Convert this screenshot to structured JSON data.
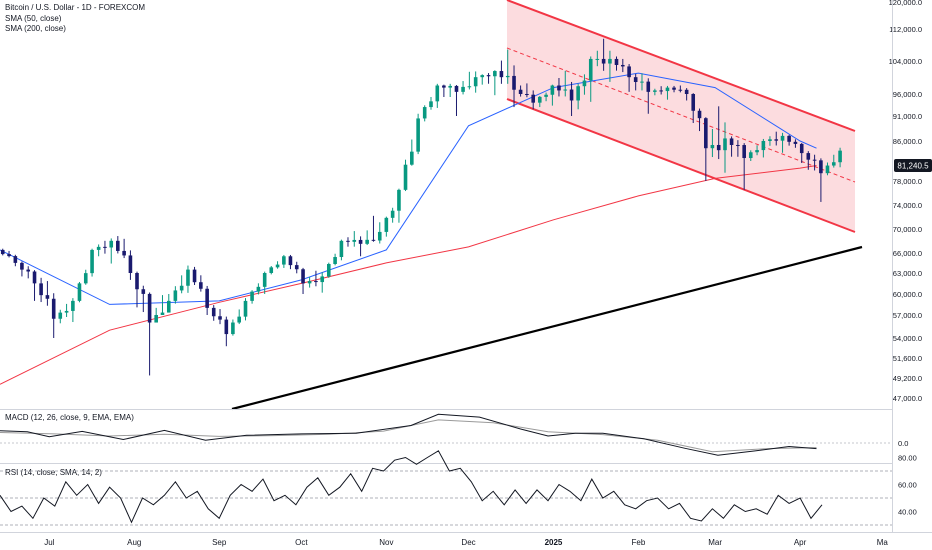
{
  "chart_data": {
    "type": "candlestick",
    "title": "Bitcoin / U.S. Dollar - 1D - FOREXCOM",
    "colors": {
      "up": "#089981",
      "down": "#1a1a6e",
      "sma50": "#2962ff",
      "sma200": "#f23645",
      "channel": "#f23645",
      "channel_fill": "#fbd0d4",
      "trendline": "#000000",
      "price_label_bg": "#131722"
    },
    "panels": [
      {
        "name": "price",
        "legend": [
          "SMA (50, close)",
          "SMA (200, close)"
        ],
        "y_scale": "log",
        "y_ticks": [
          [
            "120,000.0",
            120000
          ],
          [
            "112,000.0",
            112000
          ],
          [
            "104,000.0",
            104000
          ],
          [
            "96,000.0",
            96000
          ],
          [
            "91,000.0",
            91000
          ],
          [
            "86,000.0",
            86000
          ],
          [
            "78,000.0",
            78000
          ],
          [
            "74,000.0",
            74000
          ],
          [
            "70,000.0",
            70000
          ],
          [
            "66,000.0",
            66000
          ],
          [
            "63,000.0",
            63000
          ],
          [
            "60,000.0",
            60000
          ],
          [
            "57,000.0",
            57000
          ],
          [
            "54,000.0",
            54000
          ],
          [
            "51,600.0",
            51600
          ],
          [
            "49,200.0",
            49200
          ],
          [
            "47,000.0",
            47000
          ]
        ],
        "last_price_label": "81,240.5",
        "last_price": 81240.5
      },
      {
        "name": "macd",
        "label": "MACD (12, 26, close, 9, EMA, EMA)",
        "y_ticks": [
          [
            "0.0",
            0
          ]
        ]
      },
      {
        "name": "rsi",
        "label": "RSI (14, close, SMA, 14, 2)",
        "y_ticks": [
          [
            "80.00",
            80
          ],
          [
            "60.00",
            60
          ],
          [
            "40.00",
            40
          ]
        ],
        "bands": [
          70,
          50,
          30
        ]
      }
    ],
    "x_ticks": [
      {
        "label": "Jul",
        "day": 18
      },
      {
        "label": "Aug",
        "day": 49
      },
      {
        "label": "Sep",
        "day": 80
      },
      {
        "label": "Oct",
        "day": 110
      },
      {
        "label": "Nov",
        "day": 141
      },
      {
        "label": "Dec",
        "day": 171
      },
      {
        "label": "2025",
        "day": 202,
        "bold": true
      },
      {
        "label": "Feb",
        "day": 233
      },
      {
        "label": "Mar",
        "day": 261
      },
      {
        "label": "Apr",
        "day": 292
      },
      {
        "label": "Ma",
        "day": 322
      }
    ],
    "ohlc_weekly_approx": [
      {
        "week": "Jun 16",
        "o": 66500,
        "h": 67000,
        "l": 64000,
        "c": 64500
      },
      {
        "week": "Jun 23",
        "o": 64500,
        "h": 65000,
        "l": 59000,
        "c": 61500
      },
      {
        "week": "Jun 30",
        "o": 61500,
        "h": 63500,
        "l": 54000,
        "c": 56500
      },
      {
        "week": "Jul 7",
        "o": 56500,
        "h": 60000,
        "l": 55000,
        "c": 59000
      },
      {
        "week": "Jul 14",
        "o": 59000,
        "h": 67000,
        "l": 58500,
        "c": 66500
      },
      {
        "week": "Jul 21",
        "o": 66500,
        "h": 69000,
        "l": 64000,
        "c": 68000
      },
      {
        "week": "Jul 28",
        "o": 68000,
        "h": 70000,
        "l": 62000,
        "c": 63000
      },
      {
        "week": "Aug 4",
        "o": 63000,
        "h": 63500,
        "l": 49500,
        "c": 56000
      },
      {
        "week": "Aug 11",
        "o": 56000,
        "h": 61500,
        "l": 56000,
        "c": 59000
      },
      {
        "week": "Aug 18",
        "o": 59000,
        "h": 65000,
        "l": 58000,
        "c": 63500
      },
      {
        "week": "Aug 25",
        "o": 63500,
        "h": 64500,
        "l": 57000,
        "c": 58000
      },
      {
        "week": "Sep 1",
        "o": 58000,
        "h": 59000,
        "l": 53000,
        "c": 54500
      },
      {
        "week": "Sep 8",
        "o": 54500,
        "h": 60000,
        "l": 54000,
        "c": 59000
      },
      {
        "week": "Sep 15",
        "o": 59000,
        "h": 63500,
        "l": 58000,
        "c": 63000
      },
      {
        "week": "Sep 22",
        "o": 63000,
        "h": 66000,
        "l": 62500,
        "c": 65500
      },
      {
        "week": "Sep 29",
        "o": 65500,
        "h": 66000,
        "l": 60000,
        "c": 61500
      },
      {
        "week": "Oct 6",
        "o": 61500,
        "h": 64000,
        "l": 60000,
        "c": 62500
      },
      {
        "week": "Oct 13",
        "o": 62500,
        "h": 68500,
        "l": 62000,
        "c": 68000
      },
      {
        "week": "Oct 20",
        "o": 68000,
        "h": 69500,
        "l": 65500,
        "c": 67500
      },
      {
        "week": "Oct 27",
        "o": 67500,
        "h": 73500,
        "l": 67000,
        "c": 69500
      },
      {
        "week": "Nov 3",
        "o": 69500,
        "h": 77000,
        "l": 67500,
        "c": 76500
      },
      {
        "week": "Nov 10",
        "o": 76500,
        "h": 93000,
        "l": 76000,
        "c": 90500
      },
      {
        "week": "Nov 17",
        "o": 90500,
        "h": 99000,
        "l": 89000,
        "c": 98000
      },
      {
        "week": "Nov 24",
        "o": 98000,
        "h": 98500,
        "l": 91000,
        "c": 96500
      },
      {
        "week": "Dec 1",
        "o": 96500,
        "h": 103500,
        "l": 95000,
        "c": 100000
      },
      {
        "week": "Dec 8",
        "o": 100000,
        "h": 102000,
        "l": 95500,
        "c": 101500
      },
      {
        "week": "Dec 15",
        "o": 101500,
        "h": 108000,
        "l": 93000,
        "c": 97000
      },
      {
        "week": "Dec 22",
        "o": 97000,
        "h": 99500,
        "l": 92500,
        "c": 94000
      },
      {
        "week": "Dec 29",
        "o": 94000,
        "h": 98500,
        "l": 91500,
        "c": 98000
      },
      {
        "week": "Jan 5",
        "o": 98000,
        "h": 102500,
        "l": 91000,
        "c": 94500
      },
      {
        "week": "Jan 12",
        "o": 94500,
        "h": 106000,
        "l": 89500,
        "c": 104500
      },
      {
        "week": "Jan 19",
        "o": 104500,
        "h": 109500,
        "l": 100000,
        "c": 104500
      },
      {
        "week": "Jan 26",
        "o": 104500,
        "h": 106000,
        "l": 96500,
        "c": 100000
      },
      {
        "week": "Feb 2",
        "o": 100000,
        "h": 102000,
        "l": 91500,
        "c": 96500
      },
      {
        "week": "Feb 9",
        "o": 96500,
        "h": 98500,
        "l": 94500,
        "c": 97500
      },
      {
        "week": "Feb 16",
        "o": 97500,
        "h": 98500,
        "l": 94500,
        "c": 96000
      },
      {
        "week": "Feb 23",
        "o": 96000,
        "h": 96500,
        "l": 78000,
        "c": 84500
      },
      {
        "week": "Mar 2",
        "o": 84500,
        "h": 94500,
        "l": 80000,
        "c": 86500
      },
      {
        "week": "Mar 9",
        "o": 86500,
        "h": 87500,
        "l": 76500,
        "c": 82500
      },
      {
        "week": "Mar 16",
        "o": 82500,
        "h": 87000,
        "l": 81000,
        "c": 86000
      },
      {
        "week": "Mar 23",
        "o": 86000,
        "h": 88500,
        "l": 83500,
        "c": 87000
      },
      {
        "week": "Mar 30",
        "o": 87000,
        "h": 87500,
        "l": 81500,
        "c": 83500
      },
      {
        "week": "Apr 6",
        "o": 83500,
        "h": 84500,
        "l": 74500,
        "c": 79500
      },
      {
        "week": "Apr 13",
        "o": 79500,
        "h": 85500,
        "l": 78500,
        "c": 84000
      }
    ],
    "sma50_approx": [
      [
        0,
        66500
      ],
      [
        40,
        58500
      ],
      [
        80,
        59000
      ],
      [
        110,
        62000
      ],
      [
        141,
        66500
      ],
      [
        171,
        89000
      ],
      [
        202,
        97500
      ],
      [
        233,
        101000
      ],
      [
        261,
        97500
      ],
      [
        292,
        86000
      ],
      [
        298,
        84500
      ]
    ],
    "sma200_approx": [
      [
        0,
        48500
      ],
      [
        40,
        55000
      ],
      [
        80,
        58800
      ],
      [
        110,
        61500
      ],
      [
        141,
        64500
      ],
      [
        171,
        67000
      ],
      [
        202,
        71500
      ],
      [
        233,
        75500
      ],
      [
        261,
        78500
      ],
      [
        292,
        80500
      ],
      [
        298,
        81000
      ]
    ],
    "macd_line": [
      [
        0,
        3.5
      ],
      [
        10,
        3.2
      ],
      [
        18,
        1.8
      ],
      [
        30,
        3.3
      ],
      [
        45,
        1.0
      ],
      [
        60,
        3.6
      ],
      [
        75,
        0.8
      ],
      [
        90,
        2.2
      ],
      [
        110,
        2.6
      ],
      [
        130,
        2.8
      ],
      [
        150,
        5.0
      ],
      [
        160,
        8.2
      ],
      [
        175,
        7.4
      ],
      [
        190,
        4.0
      ],
      [
        200,
        2.0
      ],
      [
        210,
        2.8
      ],
      [
        220,
        2.8
      ],
      [
        235,
        1.2
      ],
      [
        250,
        -1.5
      ],
      [
        262,
        -3.5
      ],
      [
        276,
        -2.2
      ],
      [
        288,
        -1.0
      ],
      [
        298,
        -1.6
      ]
    ],
    "signal_line": [
      [
        0,
        3.0
      ],
      [
        20,
        2.6
      ],
      [
        40,
        2.0
      ],
      [
        60,
        2.5
      ],
      [
        80,
        1.9
      ],
      [
        100,
        2.1
      ],
      [
        120,
        2.5
      ],
      [
        140,
        3.4
      ],
      [
        160,
        6.6
      ],
      [
        180,
        5.8
      ],
      [
        200,
        3.2
      ],
      [
        220,
        2.4
      ],
      [
        240,
        0.8
      ],
      [
        260,
        -2.5
      ],
      [
        280,
        -1.6
      ],
      [
        298,
        -1.3
      ]
    ],
    "rsi_values": [
      [
        0,
        52
      ],
      [
        4,
        40
      ],
      [
        8,
        44
      ],
      [
        12,
        35
      ],
      [
        16,
        50
      ],
      [
        20,
        44
      ],
      [
        24,
        62
      ],
      [
        28,
        52
      ],
      [
        32,
        60
      ],
      [
        36,
        46
      ],
      [
        40,
        58
      ],
      [
        44,
        50
      ],
      [
        48,
        32
      ],
      [
        52,
        50
      ],
      [
        56,
        45
      ],
      [
        60,
        52
      ],
      [
        64,
        62
      ],
      [
        68,
        50
      ],
      [
        72,
        55
      ],
      [
        76,
        42
      ],
      [
        80,
        35
      ],
      [
        84,
        52
      ],
      [
        88,
        60
      ],
      [
        92,
        55
      ],
      [
        96,
        64
      ],
      [
        100,
        48
      ],
      [
        104,
        52
      ],
      [
        108,
        45
      ],
      [
        112,
        58
      ],
      [
        116,
        65
      ],
      [
        120,
        52
      ],
      [
        124,
        58
      ],
      [
        128,
        68
      ],
      [
        132,
        55
      ],
      [
        136,
        72
      ],
      [
        140,
        70
      ],
      [
        144,
        78
      ],
      [
        148,
        80
      ],
      [
        152,
        75
      ],
      [
        156,
        80
      ],
      [
        160,
        85
      ],
      [
        164,
        70
      ],
      [
        168,
        72
      ],
      [
        172,
        62
      ],
      [
        176,
        48
      ],
      [
        180,
        55
      ],
      [
        184,
        45
      ],
      [
        188,
        56
      ],
      [
        192,
        46
      ],
      [
        196,
        56
      ],
      [
        200,
        48
      ],
      [
        204,
        60
      ],
      [
        208,
        55
      ],
      [
        212,
        48
      ],
      [
        216,
        64
      ],
      [
        220,
        50
      ],
      [
        224,
        55
      ],
      [
        228,
        45
      ],
      [
        232,
        42
      ],
      [
        236,
        48
      ],
      [
        240,
        50
      ],
      [
        244,
        42
      ],
      [
        248,
        46
      ],
      [
        252,
        35
      ],
      [
        256,
        33
      ],
      [
        260,
        42
      ],
      [
        264,
        35
      ],
      [
        268,
        45
      ],
      [
        272,
        40
      ],
      [
        276,
        42
      ],
      [
        280,
        38
      ],
      [
        284,
        52
      ],
      [
        288,
        46
      ],
      [
        292,
        50
      ],
      [
        296,
        35
      ],
      [
        300,
        45
      ]
    ]
  }
}
